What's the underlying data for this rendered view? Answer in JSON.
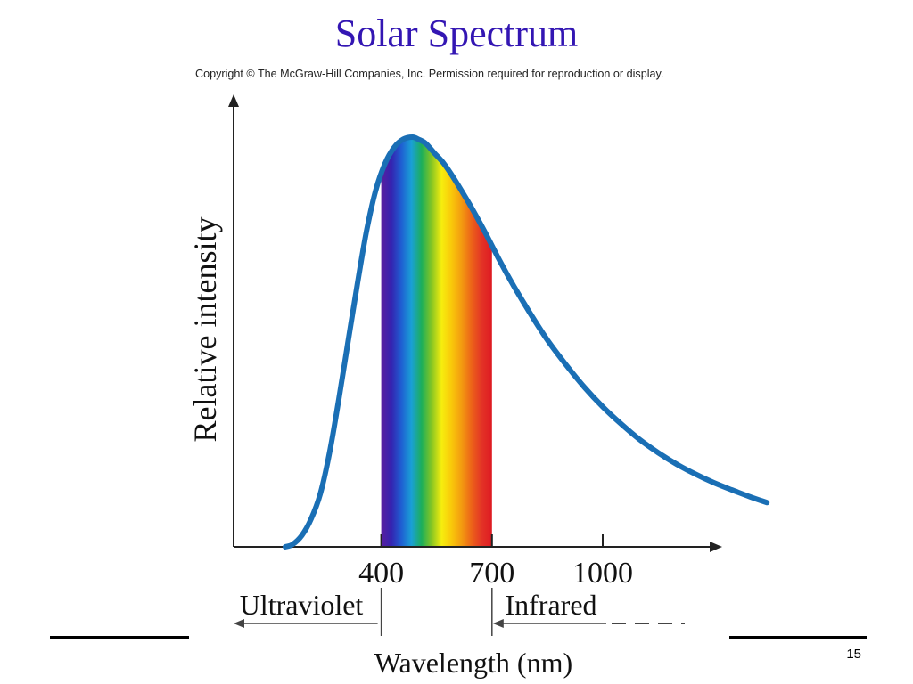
{
  "slide": {
    "title": "Solar Spectrum",
    "copyright": "Copyright © The McGraw-Hill Companies, Inc. Permission required for reproduction or display.",
    "page_number": "15"
  },
  "chart_data": {
    "type": "line",
    "title": "Solar Spectrum",
    "xlabel": "Wavelength (nm)",
    "ylabel": "Relative intensity",
    "xlim": [
      0,
      1450
    ],
    "ylim": [
      0,
      1.0
    ],
    "x_ticks": [
      400,
      700,
      1000
    ],
    "x_tick_labels": [
      "400",
      "700",
      "1000"
    ],
    "grid": false,
    "series": [
      {
        "color": "#1a6fb5",
        "x": [
          140,
          160,
          185,
          210,
          235,
          260,
          285,
          310,
          335,
          360,
          385,
          410,
          435,
          460,
          485,
          500,
          520,
          545,
          570,
          600,
          640,
          680,
          720,
          760,
          800,
          850,
          900,
          950,
          1000,
          1050,
          1100,
          1150,
          1200,
          1250,
          1300,
          1350,
          1400,
          1445
        ],
        "y": [
          0.0,
          0.006,
          0.028,
          0.068,
          0.13,
          0.23,
          0.36,
          0.5,
          0.64,
          0.77,
          0.87,
          0.935,
          0.975,
          0.995,
          1.0,
          0.995,
          0.985,
          0.96,
          0.935,
          0.895,
          0.835,
          0.77,
          0.7,
          0.635,
          0.575,
          0.505,
          0.445,
          0.39,
          0.342,
          0.3,
          0.262,
          0.23,
          0.202,
          0.178,
          0.157,
          0.139,
          0.122,
          0.108
        ]
      }
    ],
    "visible_band": {
      "range": [
        400,
        700
      ],
      "colors": [
        "#5a1f9e",
        "#3423b0",
        "#1f5fd2",
        "#1aa0d6",
        "#1cae5a",
        "#86c523",
        "#f6ee0e",
        "#f9c80a",
        "#f39a10",
        "#ec6219",
        "#e33326",
        "#de1a22"
      ]
    },
    "regions": [
      {
        "label": "Ultraviolet",
        "range": [
          null,
          400
        ]
      },
      {
        "label": "Infrared",
        "range": [
          700,
          null
        ]
      }
    ]
  }
}
